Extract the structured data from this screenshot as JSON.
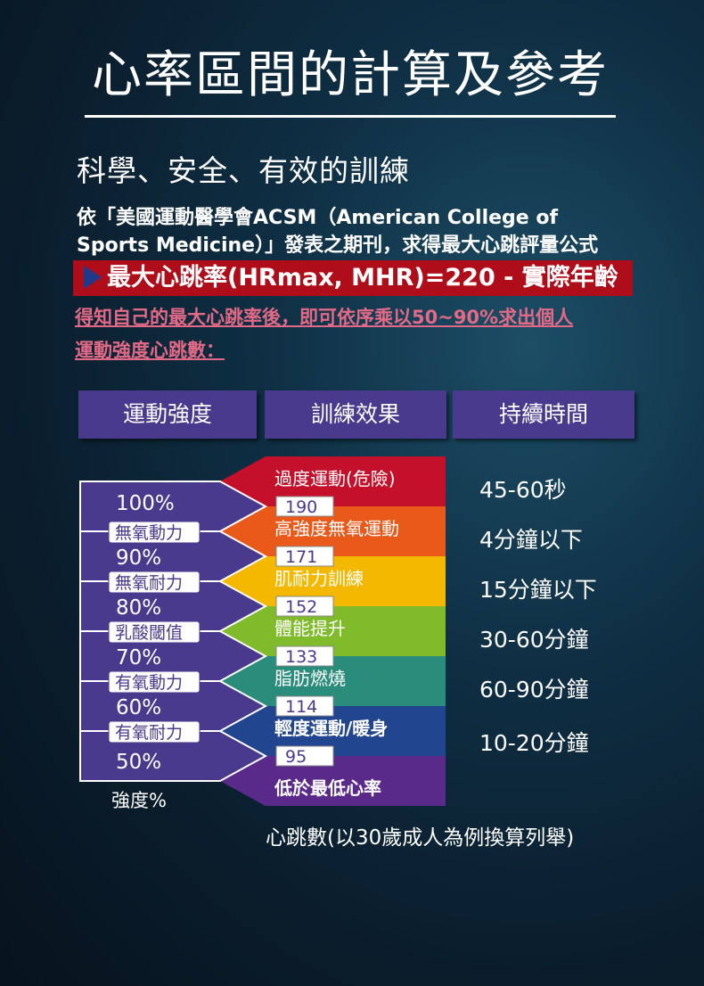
{
  "title": "心率區間的計算及參考",
  "subtitle": "科學、安全、有效的訓練",
  "paragraph": {
    "line1": "依「美國運動醫學會ACSM（American College of",
    "line2": "Sports Medicine）」發表之期刊，求得最大心跳評量公式"
  },
  "formula": "最大心跳率(HRmax, MHR)=220 - 實際年齡",
  "note": {
    "line1": "得知自己的最大心跳率後，即可依序乘以50~90%求出個人",
    "line2": "運動強度心跳數："
  },
  "headers": [
    "運動強度",
    "訓練效果",
    "持續時間"
  ],
  "percents": [
    "100%",
    "90%",
    "80%",
    "70%",
    "60%",
    "50%"
  ],
  "intensity_labels": [
    "無氧動力",
    "無氧耐力",
    "乳酸閾值",
    "有氧動力",
    "有氧耐力"
  ],
  "x_label": "強度%",
  "effects": [
    "過度運動(危險)",
    "高強度無氧運動",
    "肌耐力訓練",
    "體能提升",
    "脂肪燃燒",
    "輕度運動/暖身",
    "低於最低心率"
  ],
  "heart_rates": [
    "190",
    "171",
    "152",
    "133",
    "114",
    "95"
  ],
  "durations": [
    "45-60秒",
    "4分鐘以下",
    "15分鐘以下",
    "30-60分鐘",
    "60-90分鐘",
    "10-20分鐘"
  ],
  "caption": "心跳數(以30歲成人為例換算列舉)",
  "colors": {
    "accent_red": "#b00d1a",
    "header_purple": "#4a3a8e",
    "band_colors": [
      "#c4102a",
      "#e8591a",
      "#f4b800",
      "#7fbb2a",
      "#2a8c7a",
      "#21468f",
      "#5a2a8a"
    ]
  }
}
